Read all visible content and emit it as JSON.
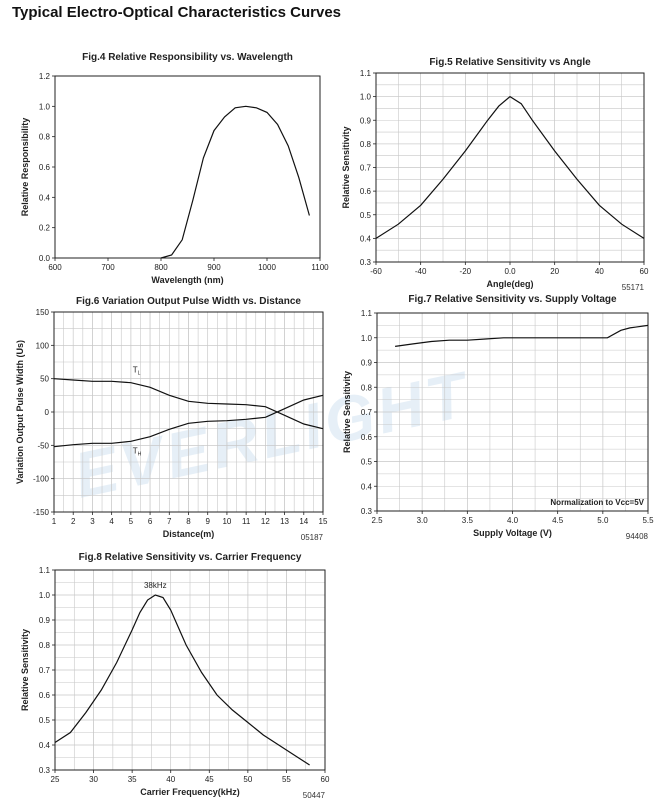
{
  "page_title": "Typical Electro-Optical Characteristics Curves",
  "watermark": "EVERLIGHT",
  "chart_data": [
    {
      "id": "fig4",
      "type": "line",
      "title": "Fig.4 Relative Responsibility vs. Wavelength",
      "xlabel": "Wavelength (nm)",
      "ylabel": "Relative Responsibility",
      "xlim": [
        600,
        1100
      ],
      "ylim": [
        0,
        1.2
      ],
      "xticks": [
        600,
        700,
        800,
        900,
        1000,
        1100
      ],
      "yticks": [
        0,
        0.2,
        0.4,
        0.6,
        0.8,
        1.0,
        1.2
      ],
      "grid": false,
      "series": [
        {
          "x": [
            800,
            820,
            840,
            860,
            880,
            900,
            920,
            940,
            960,
            980,
            1000,
            1020,
            1040,
            1060,
            1080
          ],
          "y": [
            0.0,
            0.02,
            0.12,
            0.38,
            0.66,
            0.84,
            0.93,
            0.99,
            1.0,
            0.99,
            0.96,
            0.88,
            0.74,
            0.53,
            0.28
          ]
        }
      ]
    },
    {
      "id": "fig5",
      "type": "line",
      "title": "Fig.5 Relative Sensitivity vs Angle",
      "xlabel": "Angle(deg)",
      "ylabel": "Relative Sensitivity",
      "code": "55171",
      "xlim": [
        -60,
        60
      ],
      "ylim": [
        0.3,
        1.1
      ],
      "xticks": [
        -60,
        -40,
        -20,
        0,
        20,
        40,
        60
      ],
      "yticks": [
        0.3,
        0.4,
        0.5,
        0.6,
        0.7,
        0.8,
        0.9,
        1.0,
        1.1
      ],
      "grid": true,
      "series": [
        {
          "x": [
            -60,
            -50,
            -40,
            -30,
            -20,
            -10,
            -5,
            0,
            5,
            10,
            20,
            30,
            40,
            50,
            60
          ],
          "y": [
            0.4,
            0.46,
            0.54,
            0.65,
            0.77,
            0.9,
            0.96,
            1.0,
            0.97,
            0.9,
            0.77,
            0.65,
            0.54,
            0.46,
            0.4
          ]
        }
      ]
    },
    {
      "id": "fig6",
      "type": "line",
      "title": "Fig.6 Variation Output Pulse Width vs. Distance",
      "xlabel": "Distance(m)",
      "ylabel": "Variation Output Pulse Width (Us)",
      "code": "05187",
      "xlim": [
        1,
        15
      ],
      "ylim": [
        -150,
        150
      ],
      "xticks": [
        1,
        2,
        3,
        4,
        5,
        6,
        7,
        8,
        9,
        10,
        11,
        12,
        13,
        14,
        15
      ],
      "yticks": [
        -150,
        -100,
        -50,
        0,
        50,
        100,
        150
      ],
      "grid": true,
      "annotations": [
        {
          "text": "T",
          "sub": "L",
          "x": 5.1,
          "y": 59
        },
        {
          "text": "T",
          "sub": "H",
          "x": 5.1,
          "y": -62
        }
      ],
      "series": [
        {
          "name": "TL",
          "x": [
            1,
            2,
            3,
            4,
            5,
            6,
            7,
            8,
            9,
            10,
            11,
            12,
            13,
            14,
            15
          ],
          "y": [
            50,
            48,
            46,
            46,
            44,
            37,
            25,
            16,
            13,
            12,
            11,
            8,
            -5,
            -18,
            -25
          ]
        },
        {
          "name": "TH",
          "x": [
            1,
            2,
            3,
            4,
            5,
            6,
            7,
            8,
            9,
            10,
            11,
            12,
            13,
            14,
            15
          ],
          "y": [
            -52,
            -49,
            -47,
            -47,
            -44,
            -37,
            -26,
            -17,
            -14,
            -13,
            -11,
            -8,
            5,
            18,
            25
          ]
        }
      ]
    },
    {
      "id": "fig7",
      "type": "line",
      "title": "Fig.7 Relative Sensitivity vs. Supply Voltage",
      "xlabel": "Supply Voltage (V)",
      "ylabel": "Relative Sensitivity",
      "code": "94408",
      "annotation": "Normalization to Vcc=5V",
      "xlim": [
        2.5,
        5.5
      ],
      "ylim": [
        0.3,
        1.1
      ],
      "xticks": [
        2.5,
        3.0,
        3.5,
        4.0,
        4.5,
        5.0,
        5.5
      ],
      "yticks": [
        0.3,
        0.4,
        0.5,
        0.6,
        0.7,
        0.8,
        0.9,
        1.0,
        1.1
      ],
      "grid": true,
      "series": [
        {
          "x": [
            2.7,
            2.9,
            3.1,
            3.3,
            3.5,
            3.7,
            3.9,
            4.1,
            4.3,
            4.5,
            4.7,
            4.9,
            5.05,
            5.2,
            5.3,
            5.5
          ],
          "y": [
            0.965,
            0.975,
            0.985,
            0.99,
            0.99,
            0.995,
            1.0,
            1.0,
            1.0,
            1.0,
            1.0,
            1.0,
            1.0,
            1.03,
            1.04,
            1.05
          ]
        }
      ]
    },
    {
      "id": "fig8",
      "type": "line",
      "title": "Fig.8 Relative Sensitivity vs. Carrier Frequency",
      "xlabel": "Carrier Frequency(kHz)",
      "ylabel": "Relative Sensitivity",
      "code": "50447",
      "annotation": "38kHz",
      "xlim": [
        25,
        60
      ],
      "ylim": [
        0.3,
        1.1
      ],
      "xticks": [
        25,
        30,
        35,
        40,
        45,
        50,
        55,
        60
      ],
      "yticks": [
        0.3,
        0.4,
        0.5,
        0.6,
        0.7,
        0.8,
        0.9,
        1.0,
        1.1
      ],
      "grid": true,
      "series": [
        {
          "x": [
            25,
            27,
            29,
            31,
            33,
            35,
            36,
            37,
            38,
            39,
            40,
            42,
            44,
            46,
            48,
            50,
            52,
            54,
            56,
            58
          ],
          "y": [
            0.41,
            0.45,
            0.53,
            0.62,
            0.73,
            0.86,
            0.93,
            0.98,
            1.0,
            0.99,
            0.94,
            0.8,
            0.69,
            0.6,
            0.54,
            0.49,
            0.44,
            0.4,
            0.36,
            0.32
          ]
        }
      ]
    }
  ]
}
